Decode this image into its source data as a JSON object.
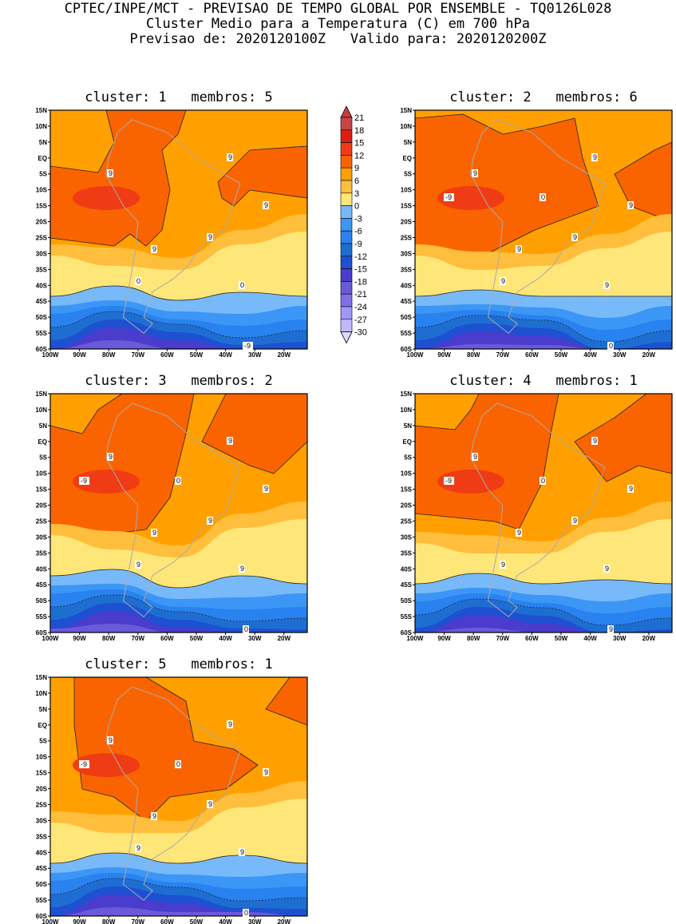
{
  "header": {
    "line1": "CPTEC/INPE/MCT - PREVISAO DE TEMPO GLOBAL POR ENSEMBLE - TQ0126L028",
    "line2": "Cluster Medio para a Temperatura (C) em 700 hPa",
    "line3": "Previsao de: 2020120100Z   Valido para: 2020120200Z"
  },
  "axes": {
    "lat_ticks": [
      "15N",
      "10N",
      "5N",
      "EQ",
      "5S",
      "10S",
      "15S",
      "20S",
      "25S",
      "30S",
      "35S",
      "40S",
      "45S",
      "50S",
      "55S",
      "60S"
    ],
    "lon_ticks": [
      "100W",
      "90W",
      "80W",
      "70W",
      "60W",
      "50W",
      "40W",
      "30W",
      "20W"
    ]
  },
  "panels": [
    {
      "title": "cluster: 1   membros: 5",
      "contour_labels": [
        "9",
        "9",
        "9",
        "9",
        "9",
        "0",
        "0",
        "-9"
      ]
    },
    {
      "title": "cluster: 2   membros: 6",
      "contour_labels": [
        "9",
        "9",
        "9",
        "9",
        "9",
        "9",
        "9",
        "0",
        "0",
        "-9"
      ]
    },
    {
      "title": "cluster: 3   membros: 2",
      "contour_labels": [
        "9",
        "9",
        "9",
        "9",
        "9",
        "9",
        "9",
        "0",
        "0",
        "-9"
      ]
    },
    {
      "title": "cluster: 4   membros: 1",
      "contour_labels": [
        "9",
        "9",
        "9",
        "9",
        "9",
        "9",
        "9",
        "9",
        "0",
        "-9"
      ]
    },
    {
      "title": "cluster: 5   membros: 1",
      "contour_labels": [
        "9",
        "9",
        "9",
        "9",
        "9",
        "9",
        "9",
        "0",
        "0",
        "-9"
      ]
    }
  ],
  "colorbar": {
    "labels": [
      "21",
      "18",
      "15",
      "12",
      "9",
      "6",
      "3",
      "0",
      "-3",
      "-6",
      "-9",
      "-12",
      "-15",
      "-18",
      "-21",
      "-24",
      "-27",
      "-30"
    ],
    "colors": [
      "#c83c3c",
      "#c84646",
      "#dc1e14",
      "#f03c14",
      "#fa6400",
      "#ffa000",
      "#ffbe3c",
      "#ffe678",
      "#78b9fa",
      "#3c96f5",
      "#2882f0",
      "#1e6ed2",
      "#1e50d2",
      "#4a3ccc",
      "#6a5ad8",
      "#7f70e8",
      "#a096ff",
      "#c0b8ff",
      "#dcd8ff"
    ]
  }
}
